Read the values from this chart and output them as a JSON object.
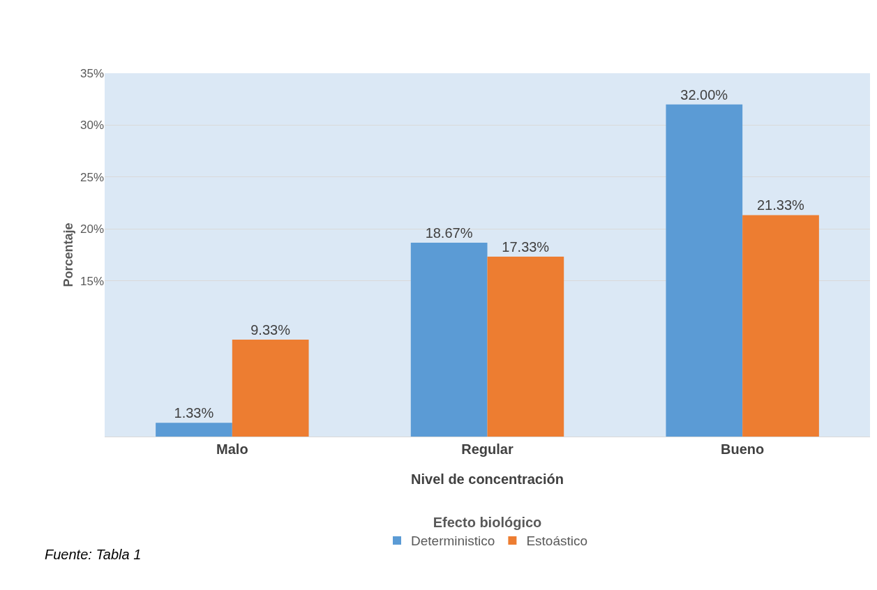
{
  "chart_data": {
    "type": "bar",
    "xlabel": "Nivel de concentración",
    "ylabel": "Porcentaje",
    "legend_title": "Efecto biológico",
    "categories": [
      "Malo",
      "Regular",
      "Bueno"
    ],
    "series": [
      {
        "name": "Deterministico",
        "color": "#5b9bd5",
        "values": [
          1.33,
          18.67,
          32.0
        ],
        "value_labels": [
          "1.33%",
          "18.67%",
          "32.00%"
        ]
      },
      {
        "name": "Estoástico",
        "color": "#ed7d31",
        "values": [
          9.33,
          17.33,
          21.33
        ],
        "value_labels": [
          "9.33%",
          "17.33%",
          "21.33%"
        ]
      }
    ],
    "ylim": [
      0,
      35
    ],
    "yticks": [
      {
        "value": 15,
        "label": "15%"
      },
      {
        "value": 20,
        "label": "20%"
      },
      {
        "value": 25,
        "label": "25%"
      },
      {
        "value": 30,
        "label": "30%"
      },
      {
        "value": 35,
        "label": "35%"
      }
    ],
    "grid": "y",
    "legend": "bottom",
    "annotations": [
      "Fuente: Tabla 1"
    ]
  }
}
